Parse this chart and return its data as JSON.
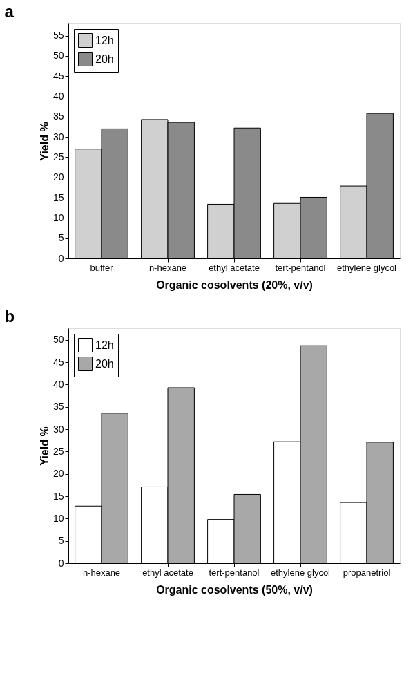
{
  "chart_data": [
    {
      "type": "bar",
      "title": "a",
      "xlabel": "Organic cosolvents (20%, v/v)",
      "ylabel": "Yield %",
      "categories": [
        "buffer",
        "n-hexane",
        "ethyl acetate",
        "tert-pentanol",
        "ethylene glycol"
      ],
      "series": [
        {
          "name": "12h",
          "color": "#d0d0d0",
          "values": [
            27.0,
            34.3,
            13.4,
            13.6,
            17.9
          ]
        },
        {
          "name": "20h",
          "color": "#8a8a8a",
          "values": [
            32.0,
            33.6,
            32.2,
            15.1,
            35.8
          ]
        }
      ],
      "ylim": [
        0,
        58
      ],
      "yticks": [
        0,
        5,
        10,
        15,
        20,
        25,
        30,
        35,
        40,
        45,
        50,
        55
      ],
      "grid": false,
      "legend": "top left"
    },
    {
      "type": "bar",
      "title": "b",
      "xlabel": "Organic cosolvents (50%, v/v)",
      "ylabel": "Yield %",
      "categories": [
        "n-hexane",
        "ethyl acetate",
        "tert-pentanol",
        "ethylene glycol",
        "propanetriol"
      ],
      "series": [
        {
          "name": "12h",
          "color": "#ffffff",
          "values": [
            12.8,
            17.1,
            9.8,
            27.2,
            13.6
          ]
        },
        {
          "name": "20h",
          "color": "#a8a8a8",
          "values": [
            33.6,
            39.3,
            15.4,
            48.7,
            27.1
          ]
        }
      ],
      "ylim": [
        0,
        52.6
      ],
      "yticks": [
        0,
        5,
        10,
        15,
        20,
        25,
        30,
        35,
        40,
        45,
        50
      ],
      "grid": false,
      "legend": "top left"
    }
  ]
}
